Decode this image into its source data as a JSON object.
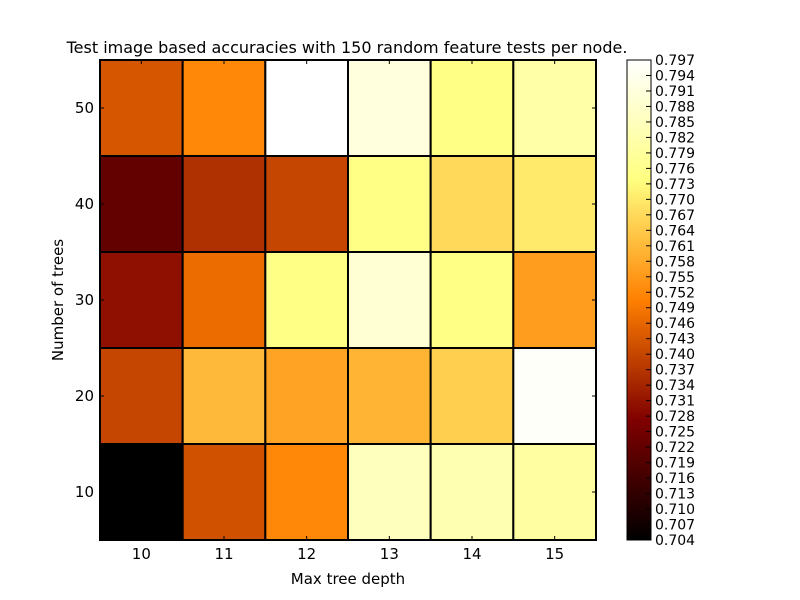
{
  "chart_data": {
    "type": "heatmap",
    "title": "Test image based accuracies with 150 random feature tests per node.",
    "xlabel": "Max tree depth",
    "ylabel": "Number of trees",
    "x_categories": [
      "10",
      "11",
      "12",
      "13",
      "14",
      "15"
    ],
    "y_categories": [
      "10",
      "20",
      "30",
      "40",
      "50"
    ],
    "values": [
      [
        0.704,
        0.742,
        0.752,
        0.785,
        0.783,
        0.78
      ],
      [
        0.74,
        0.761,
        0.757,
        0.76,
        0.765,
        0.796
      ],
      [
        0.73,
        0.747,
        0.775,
        0.789,
        0.775,
        0.756
      ],
      [
        0.722,
        0.736,
        0.74,
        0.775,
        0.767,
        0.77
      ],
      [
        0.743,
        0.752,
        0.797,
        0.791,
        0.775,
        0.781
      ]
    ],
    "colormap": "afmhot",
    "vmin": 0.704,
    "vmax": 0.797,
    "colorbar_ticks": [
      "0.704",
      "0.707",
      "0.710",
      "0.713",
      "0.716",
      "0.719",
      "0.722",
      "0.725",
      "0.728",
      "0.731",
      "0.734",
      "0.737",
      "0.740",
      "0.743",
      "0.746",
      "0.749",
      "0.752",
      "0.755",
      "0.758",
      "0.761",
      "0.764",
      "0.767",
      "0.770",
      "0.773",
      "0.776",
      "0.779",
      "0.782",
      "0.785",
      "0.788",
      "0.791",
      "0.794",
      "0.797"
    ],
    "cell_border_color": "#000000",
    "legend": "colorbar-right"
  }
}
